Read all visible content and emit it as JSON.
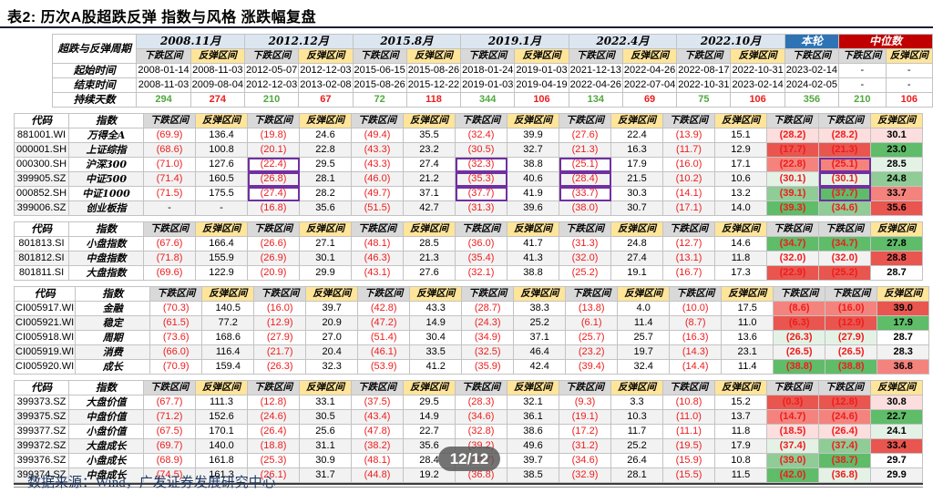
{
  "title": "表2:  历次A股超跌反弹  指数与风格  涨跌幅复盘",
  "footer": "数据来源：Wind，广发证券发展研究中心",
  "badge": "12/12",
  "colors": {
    "benlun_bg": "#2E74B5",
    "median_bg": "#C00000",
    "period_bg": "#DCE6F1",
    "down_bg": "#D9D9D9",
    "up_bg": "#FFE599",
    "negative_text": "#EE1D1D",
    "duration_green": "#4FA83D",
    "duration_red": "#EE1D1D",
    "box_purple": "#7030A0",
    "r1": "#FBDEDD",
    "r2": "#F4837D",
    "r3": "#E9564F",
    "g1": "#E4F2E6",
    "g2": "#8FCC96",
    "g3": "#5FBC69"
  },
  "periods_table": {
    "corner_label": "超跌与反弹周期",
    "sub_down": "下跌区间",
    "sub_up": "反弹区间",
    "periods": [
      {
        "label": "2008.11月",
        "cols": 2,
        "type": "normal"
      },
      {
        "label": "2012.12月",
        "cols": 2,
        "type": "normal"
      },
      {
        "label": "2015.8月",
        "cols": 2,
        "type": "normal"
      },
      {
        "label": "2019.1月",
        "cols": 2,
        "type": "normal"
      },
      {
        "label": "2022.4月",
        "cols": 2,
        "type": "normal"
      },
      {
        "label": "2022.10月",
        "cols": 2,
        "type": "normal"
      },
      {
        "label": "本轮",
        "cols": 1,
        "type": "benlun"
      },
      {
        "label": "中位数",
        "cols": 2,
        "type": "median"
      }
    ],
    "row_labels": [
      "起始时间",
      "结束时间",
      "持续天数"
    ],
    "start_dates": [
      "2008-01-14",
      "2008-11-03",
      "2012-05-07",
      "2012-12-03",
      "2015-06-15",
      "2015-08-26",
      "2018-01-24",
      "2019-01-03",
      "2021-12-13",
      "2022-04-26",
      "2022-08-17",
      "2022-10-31",
      "2023-02-14",
      "-",
      "-"
    ],
    "end_dates": [
      "2008-11-03",
      "2009-08-04",
      "2012-12-03",
      "2013-02-08",
      "2015-08-26",
      "2015-12-22",
      "2019-01-03",
      "2019-04-19",
      "2022-04-26",
      "2022-07-04",
      "2022-10-31",
      "2023-02-14",
      "2024-02-05",
      "-",
      "-"
    ],
    "durations": [
      "294",
      "274",
      "210",
      "67",
      "72",
      "118",
      "344",
      "106",
      "134",
      "69",
      "75",
      "106",
      "356",
      "210",
      "106"
    ],
    "duration_colors": [
      "green",
      "red",
      "green",
      "red",
      "green",
      "red",
      "green",
      "red",
      "green",
      "red",
      "green",
      "red",
      "green",
      "green",
      "red"
    ]
  },
  "sections": [
    {
      "code_header": "代码",
      "index_header": "指数",
      "rows": [
        {
          "code": "881001.WI",
          "name": "万得全A",
          "values": [
            "(69.9)",
            "136.4",
            "(19.8)",
            "24.6",
            "(49.4)",
            "35.5",
            "(32.4)",
            "39.9",
            "(27.6)",
            "22.4",
            "(13.9)",
            "15.1",
            "(28.2)",
            "(28.2)",
            "30.1"
          ],
          "bg3": [
            "r1",
            "r1",
            "r1"
          ],
          "boxed": []
        },
        {
          "code": "000001.SH",
          "name": "上证综指",
          "values": [
            "(68.6)",
            "100.8",
            "(20.1)",
            "22.8",
            "(43.3)",
            "23.2",
            "(30.5)",
            "32.7",
            "(21.3)",
            "16.3",
            "(11.7)",
            "12.9",
            "(17.7)",
            "(21.3)",
            "23.0"
          ],
          "bg3": [
            "r3",
            "r3",
            "g3"
          ],
          "boxed": []
        },
        {
          "code": "000300.SH",
          "name": "沪深300",
          "values": [
            "(71.0)",
            "127.6",
            "(22.4)",
            "29.5",
            "(43.3)",
            "27.4",
            "(32.3)",
            "38.8",
            "(25.1)",
            "17.9",
            "(16.0)",
            "17.1",
            "(22.8)",
            "(25.1)",
            "28.5"
          ],
          "bg3": [
            "r2",
            "r2",
            "g1"
          ],
          "boxed": [
            2,
            6,
            8,
            13
          ]
        },
        {
          "code": "399905.SZ",
          "name": "中证500",
          "values": [
            "(71.4)",
            "160.5",
            "(26.8)",
            "28.1",
            "(46.0)",
            "21.2",
            "(35.3)",
            "40.6",
            "(28.4)",
            "21.5",
            "(10.2)",
            "10.6",
            "(30.1)",
            "(30.1)",
            "24.8"
          ],
          "bg3": [
            "g1",
            "g1",
            "g2"
          ],
          "boxed": [
            2,
            6,
            8,
            13
          ]
        },
        {
          "code": "000852.SH",
          "name": "中证1000",
          "values": [
            "(71.5)",
            "175.5",
            "(27.4)",
            "28.2",
            "(49.7)",
            "37.1",
            "(37.7)",
            "41.9",
            "(33.7)",
            "30.3",
            "(14.1)",
            "13.2",
            "(39.1)",
            "(37.7)",
            "33.7"
          ],
          "bg3": [
            "g2",
            "g3",
            "r2"
          ],
          "boxed": [
            2,
            6,
            8,
            13
          ]
        },
        {
          "code": "399006.SZ",
          "name": "创业板指",
          "values": [
            "-",
            "-",
            "(16.8)",
            "35.6",
            "(51.5)",
            "42.7",
            "(31.3)",
            "39.6",
            "(38.0)",
            "30.7",
            "(17.1)",
            "14.0",
            "(39.3)",
            "(34.6)",
            "35.6"
          ],
          "bg3": [
            "g3",
            "g2",
            "r3"
          ],
          "boxed": []
        }
      ]
    },
    {
      "code_header": "代码",
      "index_header": "指数",
      "rows": [
        {
          "code": "801813.SI",
          "name": "小盘指数",
          "values": [
            "(67.6)",
            "166.4",
            "(26.6)",
            "27.1",
            "(48.1)",
            "28.5",
            "(36.0)",
            "41.7",
            "(31.3)",
            "24.8",
            "(12.7)",
            "14.6",
            "(34.7)",
            "(34.7)",
            "27.8"
          ],
          "bg3": [
            "g3",
            "g3",
            "g3"
          ],
          "boxed": []
        },
        {
          "code": "801812.SI",
          "name": "中盘指数",
          "values": [
            "(71.8)",
            "155.9",
            "(26.9)",
            "30.1",
            "(46.3)",
            "21.3",
            "(35.4)",
            "41.3",
            "(32.0)",
            "27.4",
            "(13.1)",
            "11.8",
            "(32.0)",
            "(32.0)",
            "28.8"
          ],
          "bg3": [
            null,
            null,
            "r3"
          ],
          "boxed": []
        },
        {
          "code": "801811.SI",
          "name": "大盘指数",
          "values": [
            "(69.6)",
            "122.9",
            "(20.9)",
            "29.9",
            "(43.1)",
            "27.6",
            "(32.1)",
            "38.8",
            "(25.2)",
            "19.1",
            "(16.7)",
            "17.3",
            "(22.9)",
            "(25.2)",
            "28.7"
          ],
          "bg3": [
            "r3",
            "r3",
            null
          ],
          "boxed": []
        }
      ]
    },
    {
      "code_header": "代码",
      "index_header": "指数",
      "rows": [
        {
          "code": "CI005917.WI",
          "name": "金融",
          "values": [
            "(70.3)",
            "140.5",
            "(16.0)",
            "39.7",
            "(42.8)",
            "43.3",
            "(28.7)",
            "38.3",
            "(13.8)",
            "4.0",
            "(10.0)",
            "17.5",
            "(8.6)",
            "(16.0)",
            "39.0"
          ],
          "bg3": [
            "r2",
            "r2",
            "r3"
          ],
          "boxed": []
        },
        {
          "code": "CI005921.WI",
          "name": "稳定",
          "values": [
            "(61.5)",
            "77.2",
            "(12.9)",
            "20.9",
            "(47.2)",
            "14.9",
            "(24.3)",
            "25.2",
            "(6.1)",
            "11.4",
            "(8.7)",
            "11.0",
            "(6.3)",
            "(12.9)",
            "17.9"
          ],
          "bg3": [
            "r3",
            "r3",
            "g3"
          ],
          "boxed": []
        },
        {
          "code": "CI005918.WI",
          "name": "周期",
          "values": [
            "(73.6)",
            "168.6",
            "(27.9)",
            "27.0",
            "(51.4)",
            "30.4",
            "(34.9)",
            "37.1",
            "(25.7)",
            "25.7",
            "(16.3)",
            "13.6",
            "(26.3)",
            "(27.9)",
            "28.7"
          ],
          "bg3": [
            "g1",
            "g1",
            null
          ],
          "boxed": []
        },
        {
          "code": "CI005919.WI",
          "name": "消费",
          "values": [
            "(66.0)",
            "116.4",
            "(21.7)",
            "20.4",
            "(46.1)",
            "33.5",
            "(32.5)",
            "46.4",
            "(23.2)",
            "19.7",
            "(14.3)",
            "23.1",
            "(26.5)",
            "(26.5)",
            "28.3"
          ],
          "bg3": [
            null,
            null,
            null
          ],
          "boxed": []
        },
        {
          "code": "CI005920.WI",
          "name": "成长",
          "values": [
            "(70.9)",
            "159.4",
            "(26.3)",
            "32.3",
            "(53.9)",
            "41.2",
            "(35.9)",
            "42.4",
            "(39.4)",
            "32.4",
            "(14.4)",
            "11.4",
            "(38.8)",
            "(38.8)",
            "36.8"
          ],
          "bg3": [
            "g3",
            "g3",
            "r2"
          ],
          "boxed": []
        }
      ]
    },
    {
      "code_header": "代码",
      "index_header": "指数",
      "rows": [
        {
          "code": "399373.SZ",
          "name": "大盘价值",
          "values": [
            "(67.7)",
            "111.3",
            "(12.8)",
            "33.1",
            "(37.5)",
            "29.5",
            "(28.3)",
            "32.1",
            "(9.3)",
            "3.3",
            "(10.8)",
            "15.2",
            "(0.3)",
            "(12.8)",
            "30.8"
          ],
          "bg3": [
            "r3",
            "r3",
            "r1"
          ],
          "boxed": []
        },
        {
          "code": "399375.SZ",
          "name": "中盘价值",
          "values": [
            "(71.2)",
            "152.6",
            "(24.6)",
            "30.5",
            "(43.4)",
            "14.9",
            "(34.6)",
            "36.1",
            "(19.1)",
            "10.3",
            "(11.0)",
            "13.7",
            "(14.7)",
            "(24.6)",
            "22.7"
          ],
          "bg3": [
            "r2",
            "r2",
            "g3"
          ],
          "boxed": []
        },
        {
          "code": "399377.SZ",
          "name": "小盘价值",
          "values": [
            "(67.5)",
            "170.1",
            "(26.4)",
            "25.6",
            "(47.8)",
            "22.7",
            "(32.8)",
            "38.6",
            "(17.2)",
            "11.7",
            "(11.1)",
            "11.8",
            "(18.5)",
            "(26.4)",
            "24.1"
          ],
          "bg3": [
            "r1",
            "r1",
            "g1"
          ],
          "boxed": []
        },
        {
          "code": "399372.SZ",
          "name": "大盘成长",
          "values": [
            "(69.7)",
            "140.0",
            "(18.8)",
            "31.1",
            "(38.2)",
            "35.6",
            "(39.2)",
            "49.6",
            "(31.2)",
            "25.2",
            "(19.5)",
            "17.9",
            "(37.4)",
            "(37.4)",
            "33.4"
          ],
          "bg3": [
            "g1",
            "g2",
            "r3"
          ],
          "boxed": []
        },
        {
          "code": "399376.SZ",
          "name": "小盘成长",
          "values": [
            "(68.9)",
            "161.8",
            "(25.3)",
            "30.9",
            "(48.1)",
            "28.4",
            "(38.7)",
            "39.7",
            "(34.6)",
            "26.4",
            "(15.9)",
            "10.8",
            "(39.0)",
            "(38.7)",
            "29.7"
          ],
          "bg3": [
            "g2",
            "g3",
            null
          ],
          "boxed": []
        },
        {
          "code": "399374.SZ",
          "name": "中盘成长",
          "values": [
            "(74.5)",
            "161.3",
            "(26.1)",
            "31.7",
            "(44.8)",
            "19.2",
            "(36.8)",
            "38.5",
            "(32.9)",
            "28.1",
            "(15.5)",
            "11.5",
            "(42.0)",
            "(36.8)",
            "29.9"
          ],
          "bg3": [
            "g3",
            "g1",
            null
          ],
          "boxed": []
        }
      ]
    }
  ]
}
